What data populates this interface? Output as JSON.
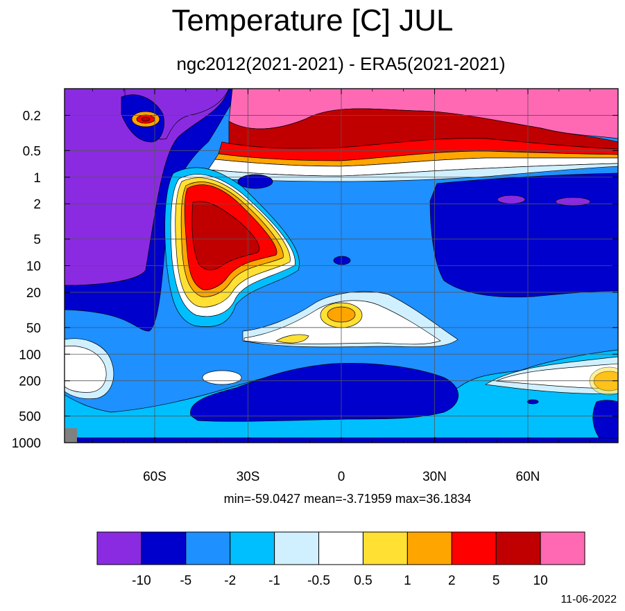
{
  "chart_data": {
    "type": "heatmap",
    "title": "Temperature [C] JUL",
    "subtitle": "ngc2012(2021-2021) - ERA5(2021-2021)",
    "stats": "min=-59.0427   mean=-3.71959   max=36.1834",
    "date": "11-06-2022",
    "x_axis": {
      "ticks": [
        {
          "label": "60S",
          "value": -60
        },
        {
          "label": "30S",
          "value": -30
        },
        {
          "label": "0",
          "value": 0
        },
        {
          "label": "30N",
          "value": 30
        },
        {
          "label": "60N",
          "value": 60
        }
      ],
      "range": [
        -89,
        89
      ]
    },
    "y_axis": {
      "scale": "log-pressure",
      "ticks": [
        {
          "label": "0.2",
          "value": 0.2
        },
        {
          "label": "0.5",
          "value": 0.5
        },
        {
          "label": "1",
          "value": 1
        },
        {
          "label": "2",
          "value": 2
        },
        {
          "label": "5",
          "value": 5
        },
        {
          "label": "10",
          "value": 10
        },
        {
          "label": "20",
          "value": 20
        },
        {
          "label": "50",
          "value": 50
        },
        {
          "label": "100",
          "value": 100
        },
        {
          "label": "200",
          "value": 200
        },
        {
          "label": "500",
          "value": 500
        },
        {
          "label": "1000",
          "value": 1000
        }
      ]
    },
    "grid": true,
    "colorbar": {
      "colors": [
        "#8a2be2",
        "#0000cd",
        "#1e90ff",
        "#00bfff",
        "#d0f0ff",
        "#ffffff",
        "#ffe033",
        "#ffa500",
        "#ff0000",
        "#c00000",
        "#ff69b4"
      ],
      "labels": [
        "-10",
        "-5",
        "-2",
        "-1",
        "-0.5",
        "0.5",
        "1",
        "2",
        "5",
        "10"
      ]
    }
  }
}
